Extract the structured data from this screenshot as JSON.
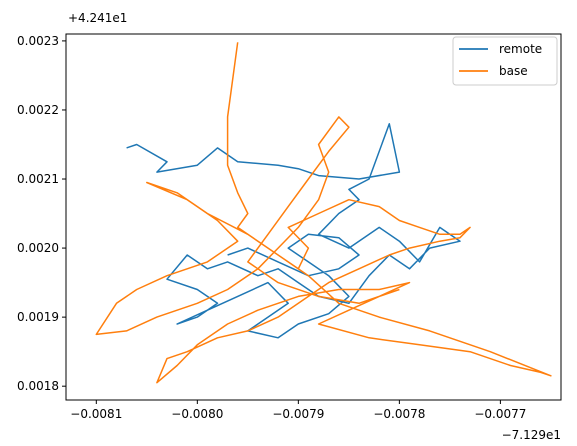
{
  "chart_data": {
    "type": "line",
    "title": "",
    "xlabel": "",
    "ylabel": "",
    "x_offset_label": "−7.129e1",
    "y_offset_label": "+4.241e1",
    "xlim": [
      -0.00813,
      -0.00764
    ],
    "ylim": [
      0.00178,
      0.00231
    ],
    "x_ticks": [
      {
        "value": -0.0081,
        "label": "−0.0081"
      },
      {
        "value": -0.008,
        "label": "−0.0080"
      },
      {
        "value": -0.0079,
        "label": "−0.0079"
      },
      {
        "value": -0.0078,
        "label": "−0.0078"
      },
      {
        "value": -0.0077,
        "label": "−0.0077"
      }
    ],
    "y_ticks": [
      {
        "value": 0.0018,
        "label": "0.0018"
      },
      {
        "value": 0.0019,
        "label": "0.0019"
      },
      {
        "value": 0.002,
        "label": "0.0020"
      },
      {
        "value": 0.0021,
        "label": "0.0021"
      },
      {
        "value": 0.0022,
        "label": "0.0022"
      },
      {
        "value": 0.0023,
        "label": "0.0023"
      }
    ],
    "grid": false,
    "legend_position": "top-right",
    "series": [
      {
        "name": "remote",
        "color": "#1f77b4",
        "points": [
          [
            -0.00807,
            0.002145
          ],
          [
            -0.00806,
            0.00215
          ],
          [
            -0.00803,
            0.002125
          ],
          [
            -0.00804,
            0.00211
          ],
          [
            -0.008,
            0.00212
          ],
          [
            -0.00798,
            0.002145
          ],
          [
            -0.00796,
            0.002125
          ],
          [
            -0.00792,
            0.00212
          ],
          [
            -0.0079,
            0.002115
          ],
          [
            -0.00788,
            0.002105
          ],
          [
            -0.00784,
            0.0021
          ],
          [
            -0.0078,
            0.00211
          ],
          [
            -0.00781,
            0.00218
          ],
          [
            -0.00783,
            0.0021
          ],
          [
            -0.00785,
            0.002085
          ],
          [
            -0.00784,
            0.00207
          ],
          [
            -0.00786,
            0.00205
          ],
          [
            -0.00788,
            0.00202
          ],
          [
            -0.00785,
            0.002
          ],
          [
            -0.00782,
            0.00203
          ],
          [
            -0.0078,
            0.00201
          ],
          [
            -0.00778,
            0.00198
          ],
          [
            -0.00776,
            0.00203
          ],
          [
            -0.00774,
            0.00201
          ],
          [
            -0.00777,
            0.002
          ],
          [
            -0.00779,
            0.00197
          ],
          [
            -0.00781,
            0.00199
          ],
          [
            -0.00783,
            0.00196
          ],
          [
            -0.00785,
            0.00192
          ],
          [
            -0.00788,
            0.00193
          ],
          [
            -0.0079,
            0.00195
          ],
          [
            -0.00792,
            0.00197
          ],
          [
            -0.00794,
            0.00196
          ],
          [
            -0.00797,
            0.00198
          ],
          [
            -0.00799,
            0.00197
          ],
          [
            -0.00801,
            0.00199
          ],
          [
            -0.00803,
            0.001955
          ],
          [
            -0.008,
            0.00194
          ],
          [
            -0.00798,
            0.00192
          ],
          [
            -0.008,
            0.0019
          ],
          [
            -0.00802,
            0.00189
          ],
          [
            -0.00799,
            0.00191
          ],
          [
            -0.00796,
            0.00193
          ],
          [
            -0.00793,
            0.00195
          ],
          [
            -0.00791,
            0.00192
          ],
          [
            -0.00793,
            0.0019
          ],
          [
            -0.00795,
            0.00188
          ],
          [
            -0.00792,
            0.00187
          ],
          [
            -0.0079,
            0.00189
          ],
          [
            -0.00787,
            0.001905
          ],
          [
            -0.00785,
            0.00193
          ],
          [
            -0.00787,
            0.00196
          ],
          [
            -0.00789,
            0.00198
          ],
          [
            -0.00791,
            0.002
          ],
          [
            -0.00789,
            0.00202
          ],
          [
            -0.00786,
            0.002015
          ],
          [
            -0.00784,
            0.00199
          ],
          [
            -0.00786,
            0.00197
          ],
          [
            -0.00789,
            0.00196
          ],
          [
            -0.00792,
            0.00198
          ],
          [
            -0.00795,
            0.002
          ],
          [
            -0.00797,
            0.00199
          ]
        ]
      },
      {
        "name": "base",
        "color": "#ff7f0e",
        "points": [
          [
            -0.00796,
            0.002298
          ],
          [
            -0.00797,
            0.00219
          ],
          [
            -0.00797,
            0.00212
          ],
          [
            -0.00796,
            0.00208
          ],
          [
            -0.00795,
            0.00205
          ],
          [
            -0.00796,
            0.00203
          ],
          [
            -0.00794,
            0.00201
          ],
          [
            -0.00792,
            0.00199
          ],
          [
            -0.0079,
            0.00197
          ],
          [
            -0.00789,
            0.002
          ],
          [
            -0.00791,
            0.00203
          ],
          [
            -0.00788,
            0.00205
          ],
          [
            -0.00785,
            0.00207
          ],
          [
            -0.00782,
            0.00206
          ],
          [
            -0.0078,
            0.00204
          ],
          [
            -0.00778,
            0.00203
          ],
          [
            -0.00776,
            0.00202
          ],
          [
            -0.00774,
            0.00202
          ],
          [
            -0.00773,
            0.00203
          ],
          [
            -0.00774,
            0.002015
          ],
          [
            -0.00776,
            0.00201
          ],
          [
            -0.00779,
            0.002
          ],
          [
            -0.00781,
            0.00199
          ],
          [
            -0.00784,
            0.00197
          ],
          [
            -0.00787,
            0.00195
          ],
          [
            -0.00789,
            0.00193
          ],
          [
            -0.00792,
            0.0019
          ],
          [
            -0.00795,
            0.00188
          ],
          [
            -0.00798,
            0.00187
          ],
          [
            -0.00801,
            0.00185
          ],
          [
            -0.00803,
            0.00184
          ],
          [
            -0.00804,
            0.001805
          ],
          [
            -0.00802,
            0.00183
          ],
          [
            -0.008,
            0.00186
          ],
          [
            -0.00797,
            0.00189
          ],
          [
            -0.00794,
            0.00191
          ],
          [
            -0.0079,
            0.00193
          ],
          [
            -0.00786,
            0.00194
          ],
          [
            -0.00782,
            0.00194
          ],
          [
            -0.00779,
            0.00195
          ],
          [
            -0.00782,
            0.00193
          ],
          [
            -0.00785,
            0.00191
          ],
          [
            -0.00788,
            0.00189
          ],
          [
            -0.00783,
            0.00187
          ],
          [
            -0.00778,
            0.00186
          ],
          [
            -0.00773,
            0.00185
          ],
          [
            -0.00769,
            0.00183
          ],
          [
            -0.00766,
            0.00182
          ],
          [
            -0.00765,
            0.001815
          ],
          [
            -0.00771,
            0.00185
          ],
          [
            -0.00777,
            0.00188
          ],
          [
            -0.00782,
            0.0019
          ],
          [
            -0.00786,
            0.00192
          ],
          [
            -0.00789,
            0.00196
          ],
          [
            -0.00792,
            0.00199
          ],
          [
            -0.00795,
            0.00202
          ],
          [
            -0.00799,
            0.00205
          ],
          [
            -0.00802,
            0.00208
          ],
          [
            -0.00805,
            0.002095
          ],
          [
            -0.00801,
            0.00207
          ],
          [
            -0.00798,
            0.00204
          ],
          [
            -0.00796,
            0.00201
          ],
          [
            -0.00799,
            0.00198
          ],
          [
            -0.00803,
            0.00196
          ],
          [
            -0.00806,
            0.00194
          ],
          [
            -0.00808,
            0.00192
          ],
          [
            -0.0081,
            0.001875
          ],
          [
            -0.00807,
            0.00188
          ],
          [
            -0.00804,
            0.0019
          ],
          [
            -0.008,
            0.00192
          ],
          [
            -0.00797,
            0.00194
          ],
          [
            -0.00794,
            0.00197
          ],
          [
            -0.00792,
            0.002
          ],
          [
            -0.0079,
            0.00203
          ],
          [
            -0.00788,
            0.00207
          ],
          [
            -0.00787,
            0.00211
          ],
          [
            -0.00788,
            0.00215
          ],
          [
            -0.00786,
            0.00219
          ],
          [
            -0.00785,
            0.002175
          ],
          [
            -0.00787,
            0.00214
          ],
          [
            -0.00789,
            0.0021
          ],
          [
            -0.00791,
            0.00206
          ],
          [
            -0.00793,
            0.00202
          ],
          [
            -0.00795,
            0.00198
          ],
          [
            -0.00792,
            0.00195
          ],
          [
            -0.00788,
            0.00193
          ],
          [
            -0.00784,
            0.00192
          ],
          [
            -0.0078,
            0.00194
          ]
        ]
      }
    ]
  }
}
